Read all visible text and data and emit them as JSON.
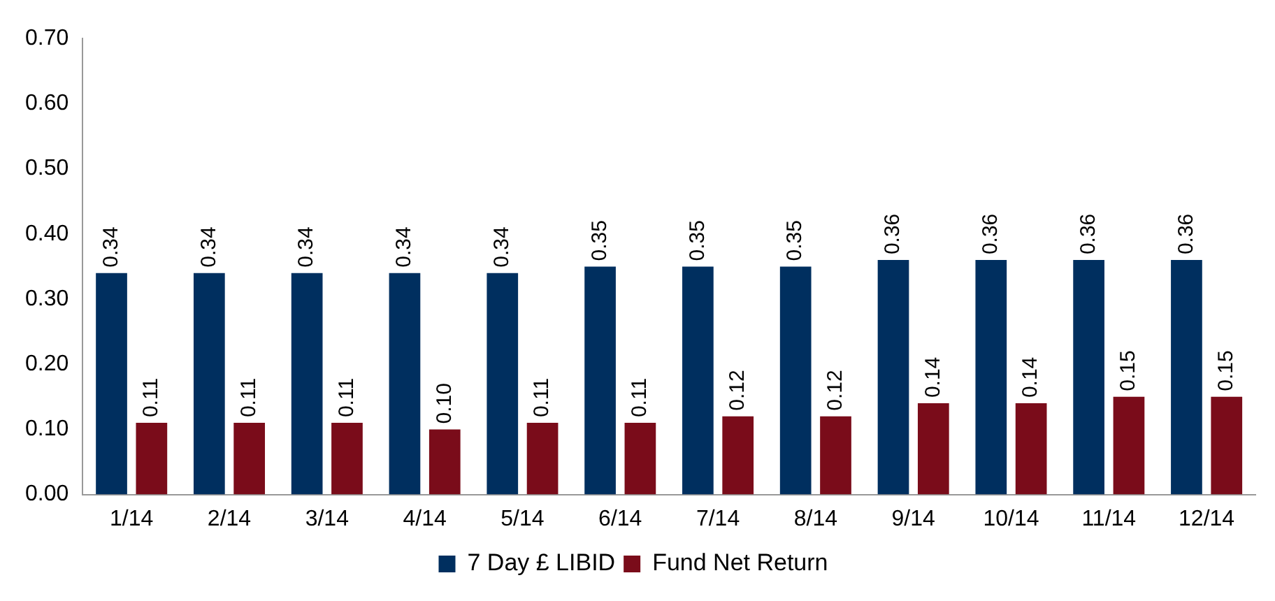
{
  "chart_data": {
    "type": "bar",
    "categories": [
      "1/14",
      "2/14",
      "3/14",
      "4/14",
      "5/14",
      "6/14",
      "7/14",
      "8/14",
      "9/14",
      "10/14",
      "11/14",
      "12/14"
    ],
    "series": [
      {
        "name": "7 Day £ LIBID",
        "color": "#002f5f",
        "values": [
          0.34,
          0.34,
          0.34,
          0.34,
          0.34,
          0.35,
          0.35,
          0.35,
          0.36,
          0.36,
          0.36,
          0.36
        ],
        "value_labels": [
          "0.34",
          "0.34",
          "0.34",
          "0.34",
          "0.34",
          "0.35",
          "0.35",
          "0.35",
          "0.36",
          "0.36",
          "0.36",
          "0.36"
        ]
      },
      {
        "name": "Fund Net Return",
        "color": "#7a0c1a",
        "values": [
          0.11,
          0.11,
          0.11,
          0.1,
          0.11,
          0.11,
          0.12,
          0.12,
          0.14,
          0.14,
          0.15,
          0.15
        ],
        "value_labels": [
          "0.11",
          "0.11",
          "0.11",
          "0.10",
          "0.11",
          "0.11",
          "0.12",
          "0.12",
          "0.14",
          "0.14",
          "0.15",
          "0.15"
        ]
      }
    ],
    "ylim": [
      0,
      0.7
    ],
    "yticks": [
      {
        "value": 0,
        "label": "0.00"
      },
      {
        "value": 0.1,
        "label": "0.10"
      },
      {
        "value": 0.2,
        "label": "0.20"
      },
      {
        "value": 0.3,
        "label": "0.30"
      },
      {
        "value": 0.4,
        "label": "0.40"
      },
      {
        "value": 0.5,
        "label": "0.50"
      },
      {
        "value": 0.6,
        "label": "0.60"
      },
      {
        "value": 0.7,
        "label": "0.70"
      }
    ],
    "grid": false,
    "legend": "bottom"
  }
}
